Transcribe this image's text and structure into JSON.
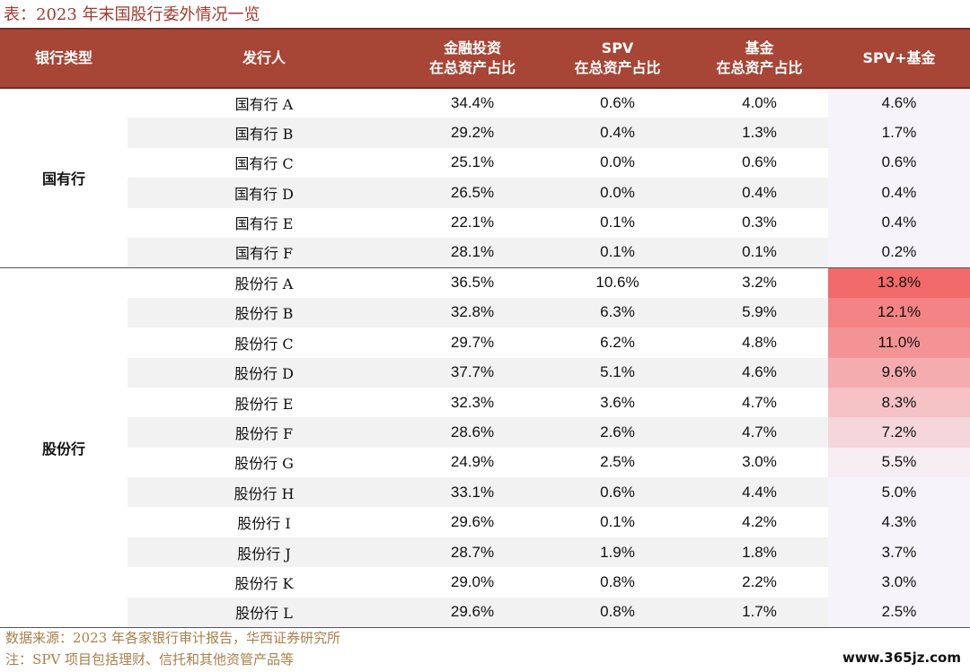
{
  "title": "表：2023 年末国股行委外情况一览",
  "headers": {
    "type": "银行类型",
    "issuer": "发行人",
    "fin_line1": "金融投资",
    "fin_line2": "在总资产占比",
    "spv_line1": "SPV",
    "spv_line2": "在总资产占比",
    "fund_line1": "基金",
    "fund_line2": "在总资产占比",
    "total": "SPV+基金"
  },
  "groups": [
    {
      "type": "国有行",
      "rows": [
        {
          "issuer": "国有行 A",
          "fin": "34.4%",
          "spv": "0.6%",
          "fund": "4.0%",
          "total": "4.6%",
          "heat": 0
        },
        {
          "issuer": "国有行 B",
          "fin": "29.2%",
          "spv": "0.4%",
          "fund": "1.3%",
          "total": "1.7%",
          "heat": 0
        },
        {
          "issuer": "国有行 C",
          "fin": "25.1%",
          "spv": "0.0%",
          "fund": "0.6%",
          "total": "0.6%",
          "heat": 0
        },
        {
          "issuer": "国有行 D",
          "fin": "26.5%",
          "spv": "0.0%",
          "fund": "0.4%",
          "total": "0.4%",
          "heat": 0
        },
        {
          "issuer": "国有行 E",
          "fin": "22.1%",
          "spv": "0.1%",
          "fund": "0.3%",
          "total": "0.4%",
          "heat": 0
        },
        {
          "issuer": "国有行 F",
          "fin": "28.1%",
          "spv": "0.1%",
          "fund": "0.1%",
          "total": "0.2%",
          "heat": 0
        }
      ]
    },
    {
      "type": "股份行",
      "rows": [
        {
          "issuer": "股份行 A",
          "fin": "36.5%",
          "spv": "10.6%",
          "fund": "3.2%",
          "total": "13.8%",
          "heat": 1.0
        },
        {
          "issuer": "股份行 B",
          "fin": "32.8%",
          "spv": "6.3%",
          "fund": "5.9%",
          "total": "12.1%",
          "heat": 0.82
        },
        {
          "issuer": "股份行 C",
          "fin": "29.7%",
          "spv": "6.2%",
          "fund": "4.8%",
          "total": "11.0%",
          "heat": 0.7
        },
        {
          "issuer": "股份行 D",
          "fin": "37.7%",
          "spv": "5.1%",
          "fund": "4.6%",
          "total": "9.6%",
          "heat": 0.52
        },
        {
          "issuer": "股份行 E",
          "fin": "32.3%",
          "spv": "3.6%",
          "fund": "4.7%",
          "total": "8.3%",
          "heat": 0.36
        },
        {
          "issuer": "股份行 F",
          "fin": "28.6%",
          "spv": "2.6%",
          "fund": "4.7%",
          "total": "7.2%",
          "heat": 0.22
        },
        {
          "issuer": "股份行 G",
          "fin": "24.9%",
          "spv": "2.5%",
          "fund": "3.0%",
          "total": "5.5%",
          "heat": 0.05
        },
        {
          "issuer": "股份行 H",
          "fin": "33.1%",
          "spv": "0.6%",
          "fund": "4.4%",
          "total": "5.0%",
          "heat": 0
        },
        {
          "issuer": "股份行 I",
          "fin": "29.6%",
          "spv": "0.1%",
          "fund": "4.2%",
          "total": "4.3%",
          "heat": 0
        },
        {
          "issuer": "股份行 J",
          "fin": "28.7%",
          "spv": "1.9%",
          "fund": "1.8%",
          "total": "3.7%",
          "heat": 0
        },
        {
          "issuer": "股份行 K",
          "fin": "29.0%",
          "spv": "0.8%",
          "fund": "2.2%",
          "total": "3.0%",
          "heat": 0
        },
        {
          "issuer": "股份行 L",
          "fin": "29.6%",
          "spv": "0.8%",
          "fund": "1.7%",
          "total": "2.5%",
          "heat": 0
        }
      ]
    }
  ],
  "source": "数据来源：2023 年各家银行审计报告，华西证券研究所",
  "note": "注：SPV 项目包括理财、信托和其他资管产品等",
  "watermark": "www.365jz.com",
  "colors": {
    "header": "#a74636",
    "heat_max": "#f26a6a",
    "heat_min": "#f6f4fa",
    "shade": "#f2f2f2"
  }
}
